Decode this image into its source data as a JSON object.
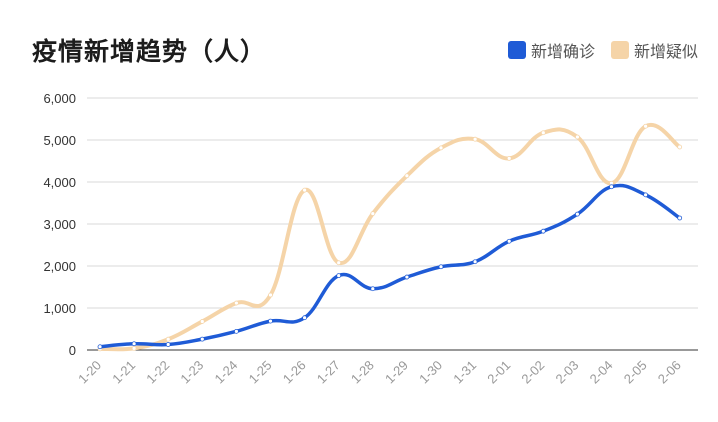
{
  "chart_data": {
    "type": "line",
    "title": "疫情新增趋势（人）",
    "categories": [
      "1-20",
      "1-21",
      "1-22",
      "1-23",
      "1-24",
      "1-25",
      "1-26",
      "1-27",
      "1-28",
      "1-29",
      "1-30",
      "1-31",
      "2-01",
      "2-02",
      "2-03",
      "2-04",
      "2-05",
      "2-06"
    ],
    "ylim": [
      0,
      6000
    ],
    "yticks": [
      "0",
      "1,000",
      "2,000",
      "3,000",
      "4,000",
      "5,000",
      "6,000"
    ],
    "grid": true,
    "legend_position": "top-right",
    "series": [
      {
        "name": "新增确诊",
        "color": "#1f5bd6",
        "values": [
          77,
          149,
          131,
          259,
          444,
          688,
          769,
          1771,
          1459,
          1737,
          1982,
          2102,
          2590,
          2829,
          3235,
          3887,
          3694,
          3143
        ]
      },
      {
        "name": "新增疑似",
        "color": "#f5d4a8",
        "values": [
          27,
          39,
          257,
          680,
          1118,
          1309,
          3806,
          2077,
          3248,
          4148,
          4812,
          5019,
          4562,
          5173,
          5072,
          3971,
          5328,
          4833
        ]
      }
    ]
  }
}
